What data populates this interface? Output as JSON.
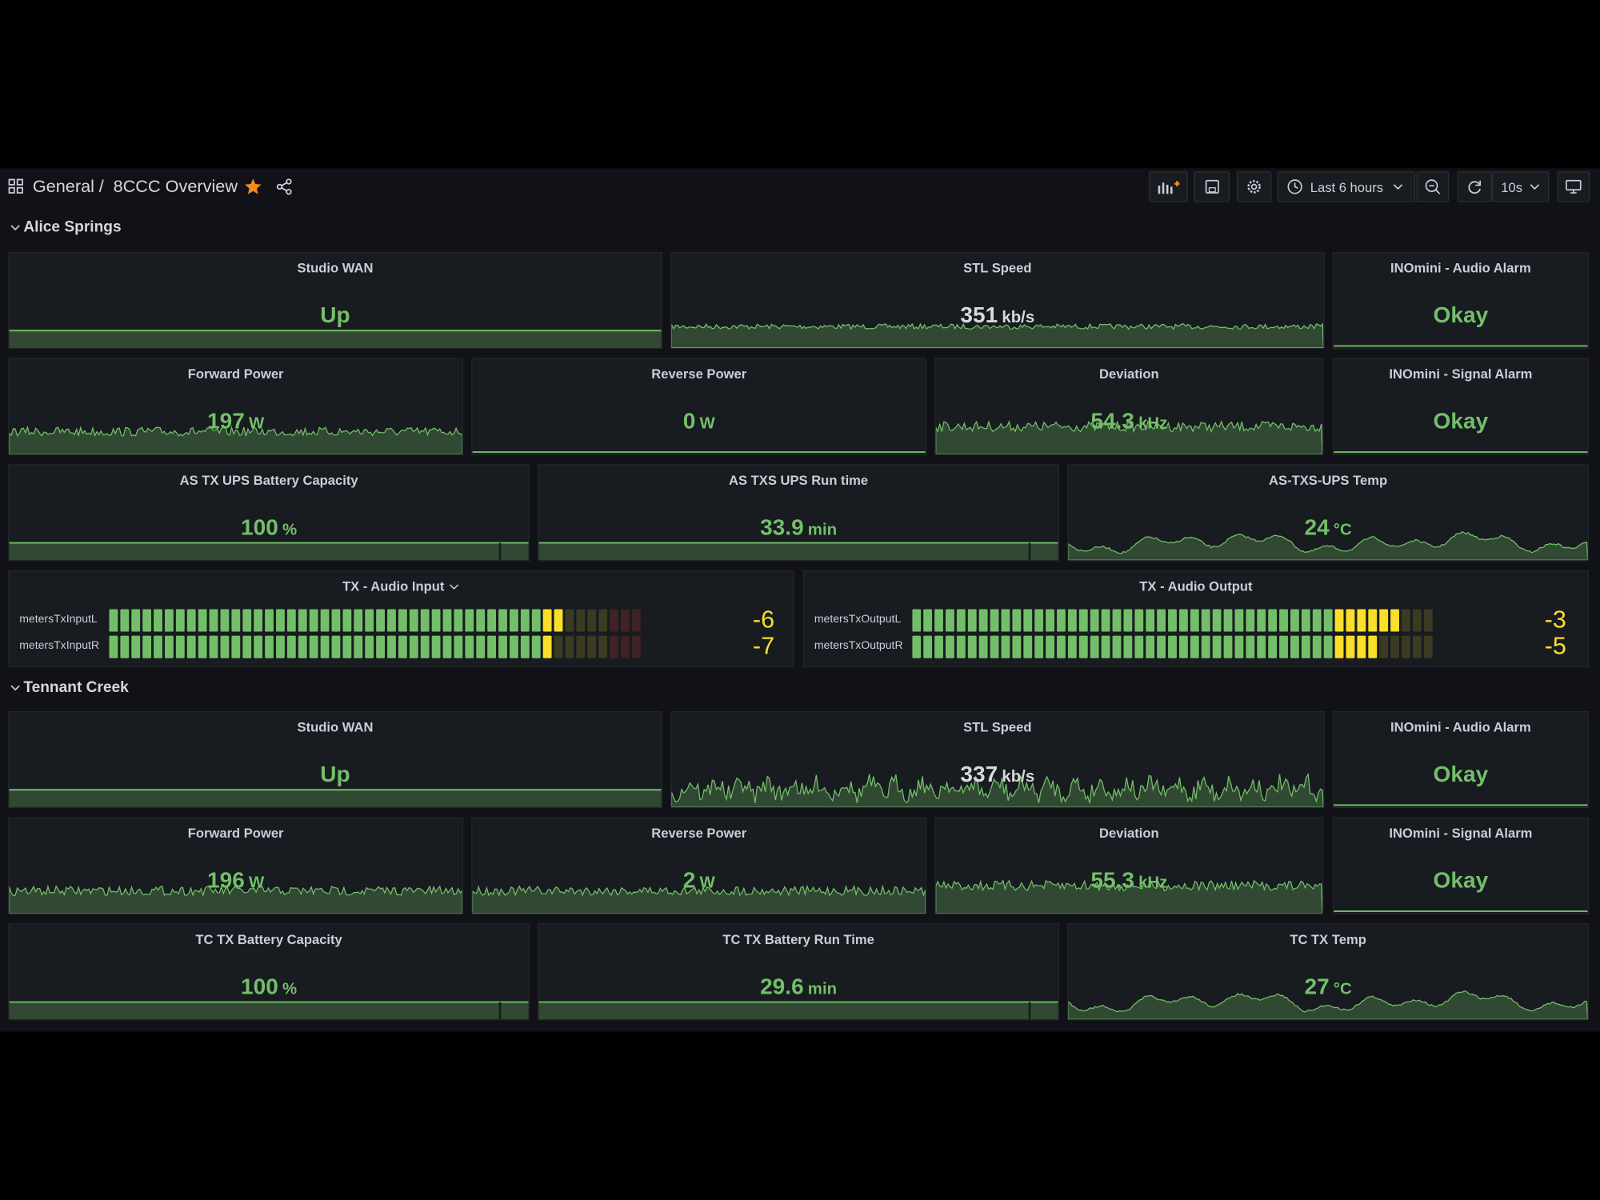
{
  "header": {
    "folder": "General",
    "separator": "/",
    "dashboard": "8CCC Overview",
    "time_range": "Last 6 hours",
    "refresh": "10s"
  },
  "sections": [
    {
      "title": "Alice Springs",
      "panels": [
        {
          "title": "Studio WAN",
          "value": "Up"
        },
        {
          "title": "STL Speed",
          "value": 351,
          "unit": "kb/s"
        },
        {
          "title": "INOmini - Audio Alarm",
          "value": "Okay"
        },
        {
          "title": "Forward Power",
          "value": 197,
          "unit": "W"
        },
        {
          "title": "Reverse Power",
          "value": 0,
          "unit": "W"
        },
        {
          "title": "Deviation",
          "value": 54.3,
          "unit": "kHz"
        },
        {
          "title": "INOmini - Signal Alarm",
          "value": "Okay"
        },
        {
          "title": "AS TX UPS Battery Capacity",
          "value": 100,
          "unit": "%"
        },
        {
          "title": "AS TXS UPS Run time",
          "value": 33.9,
          "unit": "min"
        },
        {
          "title": "AS-TXS-UPS Temp",
          "value": 24,
          "unit": "°C"
        },
        {
          "title": "TX - Audio Input",
          "meters": [
            {
              "name": "metersTxInputL",
              "value": -6
            },
            {
              "name": "metersTxInputR",
              "value": -7
            }
          ]
        },
        {
          "title": "TX - Audio Output",
          "meters": [
            {
              "name": "metersTxOutputL",
              "value": -3
            },
            {
              "name": "metersTxOutputR",
              "value": -5
            }
          ]
        }
      ]
    },
    {
      "title": "Tennant Creek",
      "panels": [
        {
          "title": "Studio WAN",
          "value": "Up"
        },
        {
          "title": "STL Speed",
          "value": 337,
          "unit": "kb/s"
        },
        {
          "title": "INOmini - Audio Alarm",
          "value": "Okay"
        },
        {
          "title": "Forward Power",
          "value": 196,
          "unit": "W"
        },
        {
          "title": "Reverse Power",
          "value": 2,
          "unit": "W"
        },
        {
          "title": "Deviation",
          "value": 55.3,
          "unit": "kHz"
        },
        {
          "title": "INOmini - Signal Alarm",
          "value": "Okay"
        },
        {
          "title": "TC TX Battery Capacity",
          "value": 100,
          "unit": "%"
        },
        {
          "title": "TC TX Battery Run Time",
          "value": 29.6,
          "unit": "min"
        },
        {
          "title": "TC TX Temp",
          "value": 27,
          "unit": "°C"
        }
      ]
    }
  ]
}
